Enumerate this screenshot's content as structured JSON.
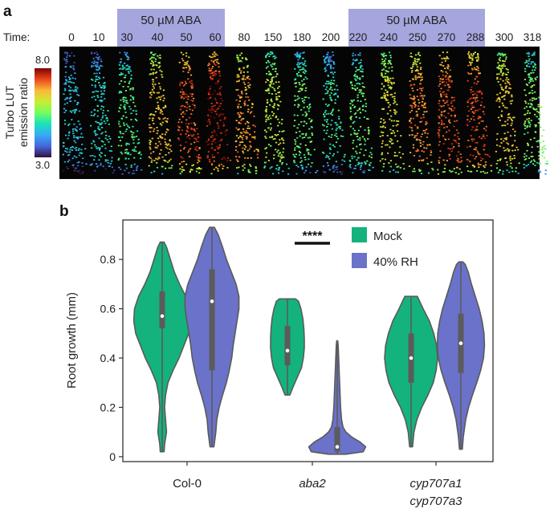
{
  "panel_a": {
    "label": "a",
    "time_label": "Time:",
    "times": [
      "0",
      "10",
      "30",
      "40",
      "50",
      "60",
      "80",
      "150",
      "180",
      "200",
      "220",
      "240",
      "250",
      "270",
      "288",
      "300",
      "318"
    ],
    "treatment_bands": [
      {
        "label": "50 µM ABA",
        "from": "30",
        "to": "60"
      },
      {
        "label": "50 µM ABA",
        "from": "220",
        "to": "288"
      }
    ],
    "colorbar": {
      "title_line1": "Turbo LUT",
      "title_line2": "emission ratio",
      "max_label": "8.0",
      "min_label": "3.0",
      "max": 8.0,
      "min": 3.0
    },
    "frame_ratios": [
      0.3,
      0.35,
      0.45,
      0.72,
      0.88,
      0.95,
      0.78,
      0.6,
      0.48,
      0.4,
      0.48,
      0.66,
      0.8,
      0.86,
      0.88,
      0.7,
      0.52
    ]
  },
  "colors": {
    "mock": "#14b37d",
    "rh": "#6a72c9",
    "band": "#a5a6de",
    "significance": "#111111"
  },
  "chart_data": {
    "type": "violin",
    "label": "b",
    "ylabel": "Root growth (mm)",
    "ylim": [
      -0.02,
      0.96
    ],
    "yticks": [
      0,
      0.2,
      0.4,
      0.6,
      0.8
    ],
    "ytick_labels": [
      "0",
      "0.2",
      "0.4",
      "0.6",
      "0.8"
    ],
    "groups": [
      {
        "id": "col0",
        "label_lines": [
          "Col-0"
        ],
        "italic": false
      },
      {
        "id": "aba2",
        "label_lines": [
          "aba2"
        ],
        "italic": true
      },
      {
        "id": "cyp",
        "label_lines": [
          "cyp707a1",
          "cyp707a3"
        ],
        "italic": true
      }
    ],
    "legend": [
      {
        "name": "Mock",
        "color": "#14b37d"
      },
      {
        "name": "40% RH",
        "color": "#6a72c9"
      }
    ],
    "significance": {
      "text": "****",
      "group": "aba2"
    },
    "series": [
      {
        "name": "Mock",
        "color": "#14b37d",
        "group": "col0",
        "min": 0.02,
        "max": 0.87,
        "q1": 0.52,
        "median": 0.57,
        "q3": 0.67,
        "profile": [
          [
            0.02,
            0.008
          ],
          [
            0.05,
            0.01
          ],
          [
            0.1,
            0.018
          ],
          [
            0.15,
            0.014
          ],
          [
            0.2,
            0.01
          ],
          [
            0.25,
            0.014
          ],
          [
            0.3,
            0.024
          ],
          [
            0.35,
            0.045
          ],
          [
            0.4,
            0.07
          ],
          [
            0.45,
            0.09
          ],
          [
            0.5,
            0.11
          ],
          [
            0.55,
            0.118
          ],
          [
            0.6,
            0.115
          ],
          [
            0.65,
            0.098
          ],
          [
            0.7,
            0.072
          ],
          [
            0.75,
            0.05
          ],
          [
            0.8,
            0.034
          ],
          [
            0.85,
            0.018
          ],
          [
            0.87,
            0.008
          ]
        ]
      },
      {
        "name": "40% RH",
        "color": "#6a72c9",
        "group": "col0",
        "min": 0.04,
        "max": 0.93,
        "q1": 0.35,
        "median": 0.63,
        "q3": 0.76,
        "profile": [
          [
            0.04,
            0.008
          ],
          [
            0.1,
            0.016
          ],
          [
            0.15,
            0.02
          ],
          [
            0.2,
            0.03
          ],
          [
            0.25,
            0.044
          ],
          [
            0.3,
            0.06
          ],
          [
            0.35,
            0.072
          ],
          [
            0.4,
            0.082
          ],
          [
            0.45,
            0.088
          ],
          [
            0.5,
            0.096
          ],
          [
            0.55,
            0.104
          ],
          [
            0.6,
            0.112
          ],
          [
            0.65,
            0.112
          ],
          [
            0.7,
            0.1
          ],
          [
            0.75,
            0.08
          ],
          [
            0.8,
            0.06
          ],
          [
            0.85,
            0.044
          ],
          [
            0.9,
            0.026
          ],
          [
            0.93,
            0.01
          ]
        ]
      },
      {
        "name": "Mock",
        "color": "#14b37d",
        "group": "aba2",
        "min": 0.25,
        "max": 0.64,
        "q1": 0.37,
        "median": 0.43,
        "q3": 0.53,
        "profile": [
          [
            0.25,
            0.01
          ],
          [
            0.28,
            0.022
          ],
          [
            0.32,
            0.04
          ],
          [
            0.36,
            0.058
          ],
          [
            0.4,
            0.066
          ],
          [
            0.44,
            0.07
          ],
          [
            0.48,
            0.07
          ],
          [
            0.52,
            0.068
          ],
          [
            0.56,
            0.064
          ],
          [
            0.6,
            0.056
          ],
          [
            0.63,
            0.046
          ],
          [
            0.64,
            0.034
          ]
        ]
      },
      {
        "name": "40% RH",
        "color": "#6a72c9",
        "group": "aba2",
        "min": 0.01,
        "max": 0.47,
        "q1": 0.02,
        "median": 0.04,
        "q3": 0.12,
        "profile": [
          [
            0.01,
            0.036
          ],
          [
            0.02,
            0.108
          ],
          [
            0.04,
            0.118
          ],
          [
            0.06,
            0.094
          ],
          [
            0.08,
            0.06
          ],
          [
            0.1,
            0.036
          ],
          [
            0.12,
            0.024
          ],
          [
            0.15,
            0.018
          ],
          [
            0.2,
            0.014
          ],
          [
            0.25,
            0.012
          ],
          [
            0.3,
            0.01
          ],
          [
            0.35,
            0.008
          ],
          [
            0.4,
            0.006
          ],
          [
            0.45,
            0.004
          ],
          [
            0.47,
            0.002
          ]
        ]
      },
      {
        "name": "Mock",
        "color": "#14b37d",
        "group": "cyp",
        "min": 0.04,
        "max": 0.65,
        "q1": 0.3,
        "median": 0.4,
        "q3": 0.5,
        "profile": [
          [
            0.04,
            0.006
          ],
          [
            0.1,
            0.012
          ],
          [
            0.15,
            0.024
          ],
          [
            0.2,
            0.044
          ],
          [
            0.25,
            0.07
          ],
          [
            0.3,
            0.092
          ],
          [
            0.35,
            0.104
          ],
          [
            0.4,
            0.11
          ],
          [
            0.45,
            0.106
          ],
          [
            0.5,
            0.094
          ],
          [
            0.55,
            0.076
          ],
          [
            0.6,
            0.05
          ],
          [
            0.65,
            0.026
          ]
        ]
      },
      {
        "name": "40% RH",
        "color": "#6a72c9",
        "group": "cyp",
        "min": 0.03,
        "max": 0.79,
        "q1": 0.34,
        "median": 0.46,
        "q3": 0.58,
        "profile": [
          [
            0.03,
            0.006
          ],
          [
            0.08,
            0.01
          ],
          [
            0.15,
            0.02
          ],
          [
            0.2,
            0.032
          ],
          [
            0.25,
            0.048
          ],
          [
            0.3,
            0.066
          ],
          [
            0.35,
            0.082
          ],
          [
            0.4,
            0.094
          ],
          [
            0.45,
            0.098
          ],
          [
            0.5,
            0.096
          ],
          [
            0.55,
            0.088
          ],
          [
            0.6,
            0.076
          ],
          [
            0.65,
            0.06
          ],
          [
            0.7,
            0.044
          ],
          [
            0.75,
            0.03
          ],
          [
            0.78,
            0.018
          ],
          [
            0.79,
            0.008
          ]
        ]
      }
    ]
  }
}
